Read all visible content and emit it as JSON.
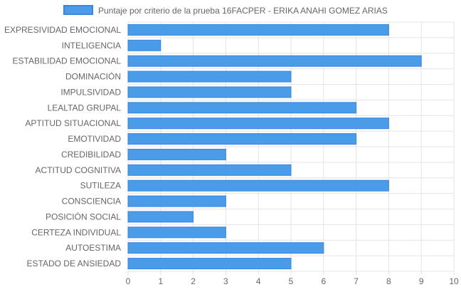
{
  "chart_data": {
    "type": "bar",
    "orientation": "horizontal",
    "legend": "top-center",
    "grid": true,
    "colors": {
      "bar_fill": "#4a9be8",
      "bar_stroke": "#3a86e0",
      "grid": "#e4e4e4",
      "text": "#666666"
    },
    "series": [
      {
        "name": "Puntaje por criterio de la prueba 16FACPER - ERIKA ANAHI GOMEZ ARIAS",
        "values": [
          8,
          1,
          9,
          5,
          5,
          7,
          8,
          7,
          3,
          5,
          8,
          3,
          2,
          3,
          6,
          5
        ]
      }
    ],
    "categories": [
      "EXPRESIVIDAD EMOCIONAL",
      "INTELIGENCIA",
      "ESTABILIDAD EMOCIONAL",
      "DOMINACIÓN",
      "IMPULSIVIDAD",
      "LEALTAD GRUPAL",
      "APTITUD SITUACIONAL",
      "EMOTIVIDAD",
      "CREDIBILIDAD",
      "ACTITUD COGNITIVA",
      "SUTILEZA",
      "CONSCIENCIA",
      "POSICIÓN SOCIAL",
      "CERTEZA INDIVIDUAL",
      "AUTOESTIMA",
      "ESTADO DE ANSIEDAD"
    ],
    "xlim": [
      0,
      10
    ],
    "xticks": [
      "0",
      "1",
      "2",
      "3",
      "4",
      "5",
      "6",
      "7",
      "8",
      "9",
      "10"
    ]
  }
}
